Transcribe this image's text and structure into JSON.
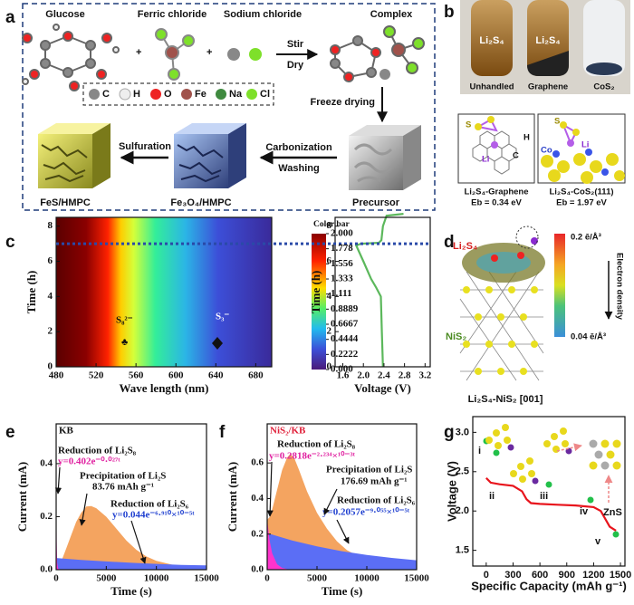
{
  "panels": {
    "a": {
      "label": "a",
      "reagents": [
        "Glucose",
        "Ferric chloride",
        "Sodium chloride"
      ],
      "product": "Complex",
      "stir": "Stir",
      "dry": "Dry",
      "atoms": [
        "C",
        "H",
        "O",
        "Fe",
        "Na",
        "Cl"
      ],
      "freeze": "Freeze drying",
      "precursor": "Precursor",
      "carbonization": "Carbonization",
      "washing": "Washing",
      "oxide": "Fe₃O₄/HMPC",
      "sulfuration": "Sulfuration",
      "sulfide": "FeS/HMPC"
    },
    "b": {
      "label": "b",
      "tube_text": [
        "Li₂S₄",
        "Li₂S₄"
      ],
      "tubes": [
        "Unhandled",
        "Graphene",
        "CoS₂"
      ],
      "left_atoms": [
        "S",
        "H",
        "Li",
        "C"
      ],
      "right_atoms": [
        "S",
        "Li",
        "Co"
      ],
      "captions": [
        "Li₂S₄-Graphene",
        "Eb = 0.34 eV",
        "Li₂S₄-CoS₂(111)",
        "Eb = 1.97 eV"
      ]
    },
    "c_map": {
      "label": "c",
      "xlabel": "Wave length (nm)",
      "ylabel": "Time (h)",
      "xlim": [
        480,
        696
      ],
      "ylim": [
        0,
        8.5
      ],
      "xticks": [
        480,
        520,
        560,
        600,
        640,
        680
      ],
      "yticks": [
        0,
        2,
        4,
        6,
        8
      ],
      "annotations": [
        "S₈²⁻",
        "S₃⁻"
      ],
      "dashed_time": 7,
      "colorbar": {
        "title": "Color bar",
        "lim": [
          0,
          2
        ],
        "ticks": [
          {
            "value": 0,
            "label": "0.000"
          },
          0.2222,
          0.4444,
          0.6667,
          0.8889,
          1.111,
          1.333,
          1.556,
          1.778,
          {
            "value": 2,
            "label": "2.000"
          }
        ]
      }
    },
    "c_volt": {
      "xlabel": "Voltage (V)",
      "ylabel": "Time (h)",
      "xlim": [
        1.45,
        3.3
      ],
      "ylim": [
        0,
        8.5
      ],
      "xticks": [
        1.6,
        {
          "value": 2,
          "label": "2.0"
        },
        2.4,
        2.8,
        3.2
      ],
      "yticks": [
        0,
        2,
        4,
        6,
        8
      ],
      "curves": [
        {
          "color": "#5cb85c",
          "area": false,
          "x": [
            2.38,
            2.36,
            2.34,
            2.25,
            2.15,
            2.0,
            1.86,
            1.95,
            2.3,
            2.35,
            2.38,
            2.45,
            2.78
          ],
          "y": [
            0,
            2,
            4,
            4.5,
            5,
            6,
            6.9,
            7.0,
            7.05,
            7.2,
            8,
            8.6,
            8.7
          ]
        }
      ]
    },
    "d": {
      "label": "d",
      "adsorbate": "Li₂S₄",
      "substrate": "NiS₂",
      "caption": "Li₂S₄-NiS₂ [001]",
      "density_max": "0.2 ē/Å³",
      "density_min": "0.04 ē/Å³",
      "density_title": "Electron density"
    },
    "e": {
      "label": "e",
      "name": "KB",
      "xlabel": "Time (s)",
      "ylabel": "Current (mA)",
      "xlim": [
        0,
        15000
      ],
      "ylim": [
        0,
        0.55
      ],
      "xticks": [
        0,
        5000,
        10000,
        15000
      ],
      "yticks": [
        {
          "value": 0,
          "label": "0.0"
        },
        0.2,
        0.4
      ],
      "notes": [
        "Reduction of Li₂S₈",
        "y=0.402e⁻⁰·⁰²⁷ᵗ",
        "Precipitation of Li₂S",
        "83.76 mAh g⁻¹",
        "Reduction of Li₂S₆",
        "y=0.044e⁻⁶·⁹¹⁰×¹⁰⁻⁵ᵗ"
      ],
      "curves": [
        {
          "color": "#f4a460",
          "area": true,
          "x": [
            0,
            500,
            1000,
            1500,
            2000,
            2500,
            3000,
            3500,
            4000,
            5000,
            6000,
            7000,
            8000,
            9000,
            10000,
            12000,
            15000
          ],
          "y": [
            0,
            0.03,
            0.08,
            0.13,
            0.18,
            0.215,
            0.238,
            0.24,
            0.232,
            0.2,
            0.155,
            0.11,
            0.075,
            0.05,
            0.033,
            0.015,
            0.005
          ]
        },
        {
          "color": "#5b6ef5",
          "area": true,
          "x": [
            0,
            2500,
            5000,
            7500,
            10000,
            12500,
            15000
          ],
          "y": [
            0.044,
            0.037,
            0.031,
            0.026,
            0.022,
            0.018,
            0.016
          ]
        },
        {
          "color": "#ff33cc",
          "area": true,
          "x": [
            0,
            50,
            100,
            200,
            400,
            600
          ],
          "y": [
            0.4,
            0.104,
            0.027,
            0.005,
            0.001,
            0
          ]
        }
      ]
    },
    "f": {
      "label": "f",
      "name": "NiS₂/KB",
      "xlabel": "Time (s)",
      "ylabel": "Current (mA)",
      "xlim": [
        0,
        15000
      ],
      "ylim": [
        0,
        0.82
      ],
      "xticks": [
        0,
        5000,
        10000,
        15000
      ],
      "yticks": [
        {
          "value": 0,
          "label": "0.0"
        },
        0.2,
        0.4,
        0.6
      ],
      "notes": [
        "Reduction of Li₂S₈",
        "y=0.2818e⁻²·²³⁴×¹⁰⁻³ᵗ",
        "Precipitation of Li₂S",
        "176.69 mAh g⁻¹",
        "Reduction of Li₂S₆",
        "y=0.2057e⁻⁹·⁰⁵⁵×¹⁰⁻⁵ᵗ"
      ],
      "curves": [
        {
          "color": "#f4a460",
          "area": true,
          "x": [
            0,
            300,
            600,
            1000,
            1500,
            2000,
            2300,
            2700,
            3200,
            4000,
            5000,
            6000,
            7000,
            8000,
            9000,
            10000,
            12000,
            15000
          ],
          "y": [
            0.28,
            0.3,
            0.36,
            0.45,
            0.56,
            0.63,
            0.65,
            0.63,
            0.56,
            0.44,
            0.32,
            0.23,
            0.16,
            0.11,
            0.08,
            0.06,
            0.035,
            0.02
          ]
        },
        {
          "color": "#5b6ef5",
          "area": true,
          "x": [
            0,
            2500,
            5000,
            7500,
            10000,
            12500,
            15000
          ],
          "y": [
            0.206,
            0.164,
            0.131,
            0.104,
            0.083,
            0.066,
            0.053
          ]
        },
        {
          "color": "#ff33cc",
          "area": true,
          "x": [
            0,
            250,
            500,
            1000,
            1500,
            2000
          ],
          "y": [
            0.282,
            0.161,
            0.092,
            0.03,
            0.01,
            0.003
          ]
        }
      ]
    },
    "g": {
      "label": "g",
      "xlabel": "Specific Capacity (mAh g⁻¹)",
      "ylabel": "Voltage (V)",
      "xlim": [
        -150,
        1550
      ],
      "ylim": [
        1.3,
        3.2
      ],
      "xticks": [
        0,
        300,
        600,
        900,
        1200,
        1500
      ],
      "yticks": [
        1.5,
        {
          "value": 2,
          "label": "2.0"
        },
        2.5,
        {
          "value": 3,
          "label": "3.0"
        }
      ],
      "stages": [
        "i",
        "ii",
        "iii",
        "iv",
        "v"
      ],
      "product": "ZnS",
      "curves": [
        {
          "color": "#e8141c",
          "area": false,
          "x": [
            0,
            50,
            150,
            300,
            400,
            450,
            500,
            600,
            800,
            1000,
            1200,
            1280,
            1320,
            1380,
            1450
          ],
          "y": [
            2.42,
            2.36,
            2.34,
            2.32,
            2.25,
            2.15,
            2.1,
            2.09,
            2.08,
            2.07,
            2.05,
            2.0,
            1.92,
            1.8,
            1.75
          ]
        }
      ]
    }
  }
}
